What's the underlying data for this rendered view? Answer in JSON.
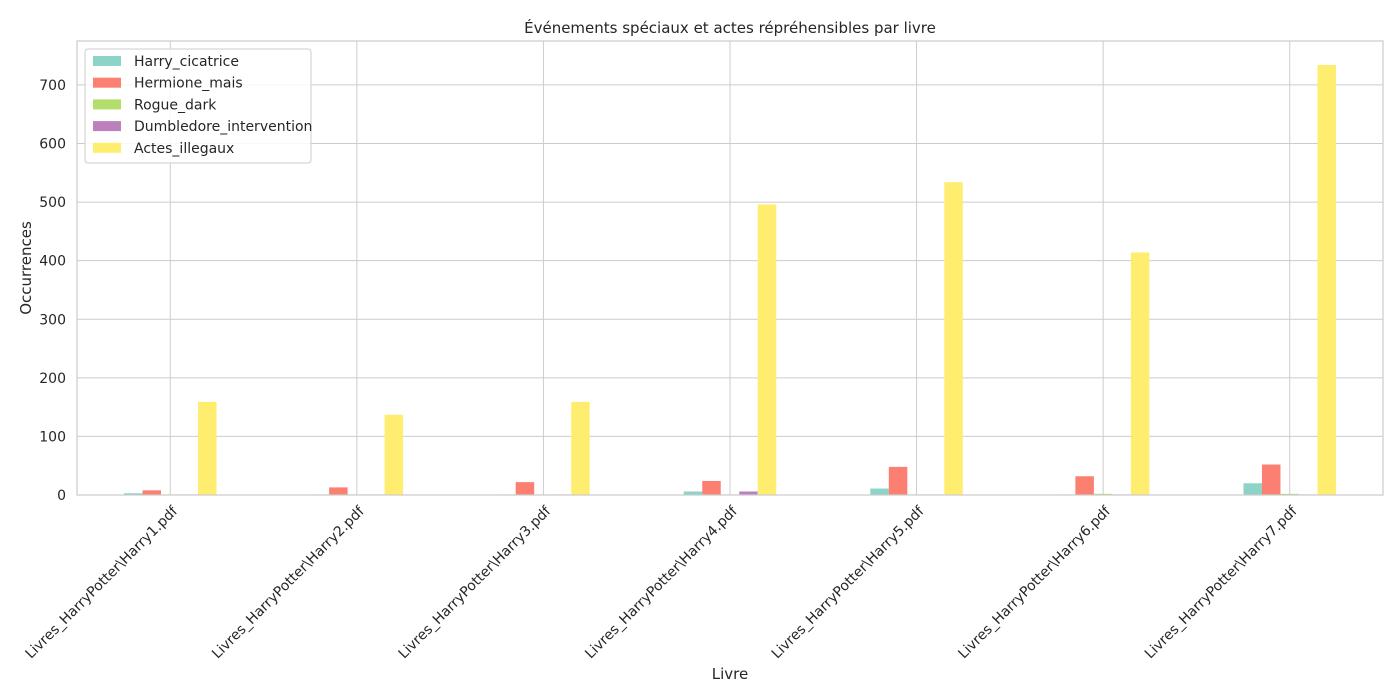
{
  "chart_data": {
    "type": "bar",
    "title": "Événements spéciaux et actes répréhensibles par livre",
    "xlabel": "Livre",
    "ylabel": "Occurrences",
    "ylim": [
      0,
      775
    ],
    "yticks": [
      0,
      100,
      200,
      300,
      400,
      500,
      600,
      700
    ],
    "grid": true,
    "legend_position": "top-left",
    "categories": [
      "Livres_HarryPotter\\Harry1.pdf",
      "Livres_HarryPotter\\Harry2.pdf",
      "Livres_HarryPotter\\Harry3.pdf",
      "Livres_HarryPotter\\Harry4.pdf",
      "Livres_HarryPotter\\Harry5.pdf",
      "Livres_HarryPotter\\Harry6.pdf",
      "Livres_HarryPotter\\Harry7.pdf"
    ],
    "series": [
      {
        "name": "Harry_cicatrice",
        "color": "#8dd3c7",
        "values": [
          3,
          1,
          1,
          6,
          11,
          1,
          20
        ]
      },
      {
        "name": "Hermione_mais",
        "color": "#fb8072",
        "values": [
          8,
          13,
          22,
          24,
          48,
          32,
          52
        ]
      },
      {
        "name": "Rogue_dark",
        "color": "#b3de69",
        "values": [
          1,
          1,
          1,
          1,
          1,
          2,
          2
        ]
      },
      {
        "name": "Dumbledore_intervention",
        "color": "#bc80bd",
        "values": [
          1,
          1,
          1,
          6,
          1,
          1,
          1
        ]
      },
      {
        "name": "Actes_illegaux",
        "color": "#ffed6f",
        "values": [
          159,
          137,
          159,
          496,
          534,
          414,
          734
        ]
      }
    ]
  }
}
